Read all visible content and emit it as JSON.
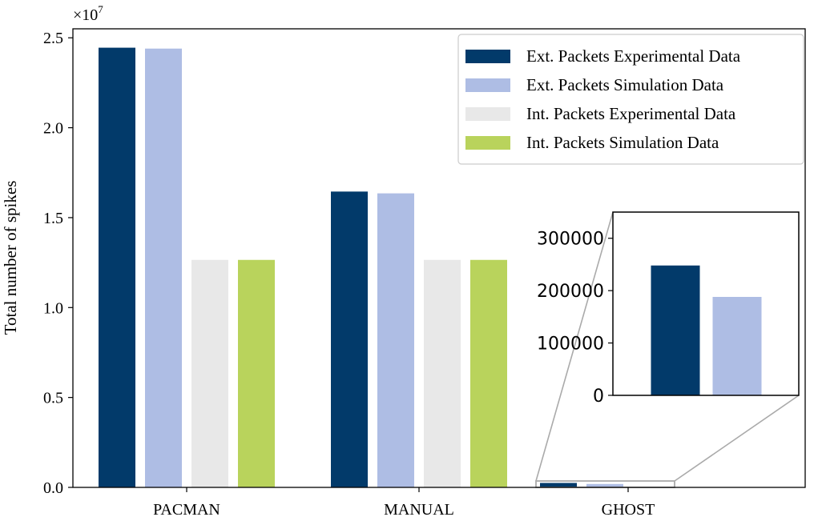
{
  "chart_data": {
    "type": "bar",
    "categories": [
      "PACMAN",
      "MANUAL",
      "GHOST"
    ],
    "ylabel": "Total number of spikes",
    "y_multiplier_label": "×10",
    "y_multiplier_exponent": "7",
    "ylim": [
      0,
      25500000
    ],
    "yticks": [
      0,
      5000000,
      10000000,
      15000000,
      20000000,
      25000000
    ],
    "ytick_labels": [
      "0.0",
      "0.5",
      "1.0",
      "1.5",
      "2.0",
      "2.5"
    ],
    "legend_position": "top-right",
    "series": [
      {
        "name": "Ext. Packets Experimental Data",
        "color": "#023a6a",
        "values": [
          24450000,
          16450000,
          248000
        ]
      },
      {
        "name": "Ext. Packets Simulation Data",
        "color": "#aebde4",
        "values": [
          24400000,
          16350000,
          188000
        ]
      },
      {
        "name": "Int. Packets Experimental Data",
        "color": "#e8e8e8",
        "values": [
          12650000,
          12650000,
          0
        ]
      },
      {
        "name": "Int. Packets Simulation Data",
        "color": "#b9d35c",
        "values": [
          12650000,
          12650000,
          0
        ]
      }
    ],
    "inset": {
      "category": "GHOST",
      "ylim": [
        0,
        350000
      ],
      "yticks": [
        0,
        100000,
        200000,
        300000
      ],
      "ytick_labels": [
        "0",
        "100000",
        "200000",
        "300000"
      ],
      "series_indices": [
        0,
        1
      ]
    }
  }
}
